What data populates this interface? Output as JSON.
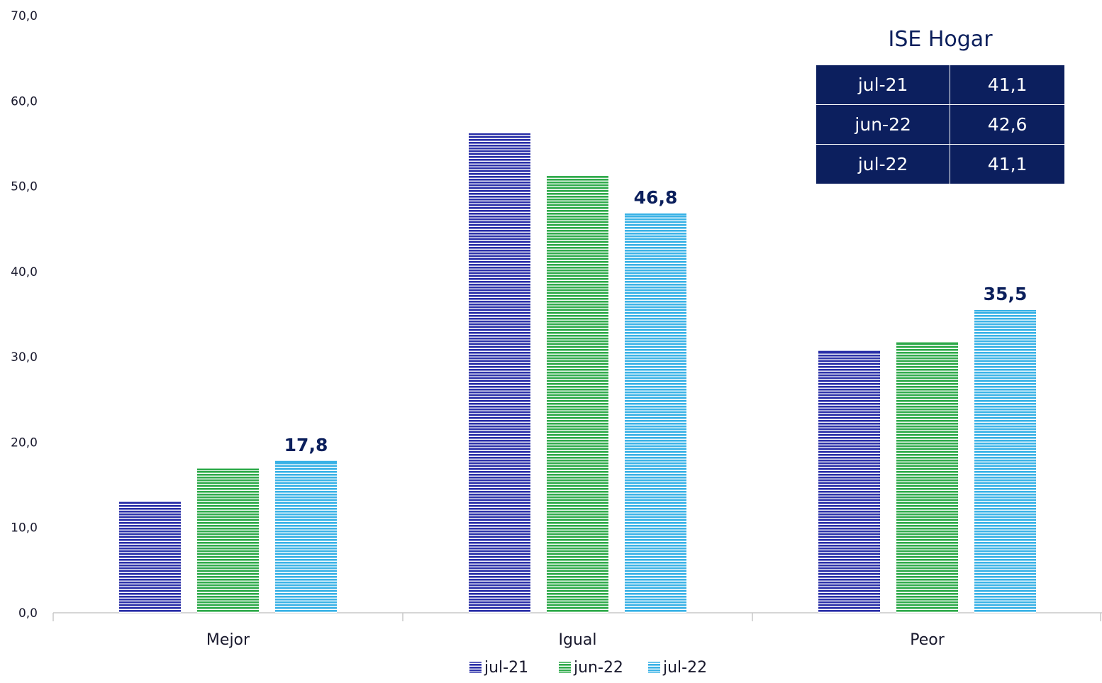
{
  "chart_data": {
    "type": "bar",
    "categories": [
      "Mejor",
      "Igual",
      "Peor"
    ],
    "series": [
      {
        "name": "jul-21",
        "values": [
          13.0,
          56.2,
          30.7
        ],
        "color": "#2a2fa8"
      },
      {
        "name": "jun-22",
        "values": [
          16.9,
          51.2,
          31.7
        ],
        "color": "#2eaa4a"
      },
      {
        "name": "jul-22",
        "values": [
          17.8,
          46.8,
          35.5
        ],
        "color": "#39b2e6"
      }
    ],
    "data_labels": [
      {
        "series": 2,
        "category": 0,
        "text": "17,8"
      },
      {
        "series": 2,
        "category": 1,
        "text": "46,8"
      },
      {
        "series": 2,
        "category": 2,
        "text": "35,5"
      }
    ],
    "yticks": [
      "0,0",
      "10,0",
      "20,0",
      "30,0",
      "40,0",
      "50,0",
      "60,0",
      "70,0"
    ],
    "ylim": [
      0,
      70
    ],
    "grid": false,
    "legend_position": "bottom"
  },
  "ise_table": {
    "title": "ISE Hogar",
    "rows": [
      {
        "label": "jul-21",
        "value": "41,1"
      },
      {
        "label": "jun-22",
        "value": "42,6"
      },
      {
        "label": "jul-22",
        "value": "41,1"
      }
    ]
  }
}
